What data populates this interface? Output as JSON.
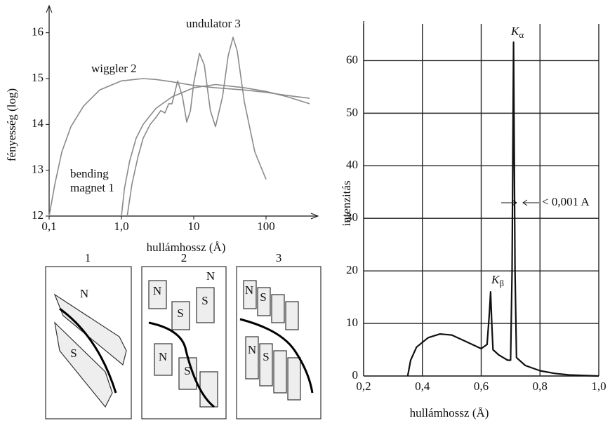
{
  "chart_data": [
    {
      "type": "line",
      "xscale": "log",
      "y_label": "fényesség (log)",
      "x_label": "hullámhossz (Å)",
      "xlim": [
        0.1,
        400
      ],
      "ylim": [
        12,
        16.5
      ],
      "xticks": [
        {
          "value": 0.1,
          "label": "0,1"
        },
        {
          "value": 1,
          "label": "1,0"
        },
        10,
        100
      ],
      "yticks": [
        12,
        13,
        14,
        15,
        16
      ],
      "grid": false,
      "series": [
        {
          "name": "wiggler 2",
          "color": "#8a8a8a",
          "x": [
            0.1,
            0.12,
            0.15,
            0.2,
            0.3,
            0.5,
            1,
            2,
            3,
            5,
            10,
            20,
            50,
            100,
            200,
            400
          ],
          "values": [
            12,
            12.7,
            13.4,
            13.95,
            14.4,
            14.75,
            14.95,
            15.0,
            14.98,
            14.93,
            14.85,
            14.8,
            14.75,
            14.7,
            14.63,
            14.57
          ]
        },
        {
          "name": "bending magnet 1",
          "color": "#8a8a8a",
          "x": [
            1.0,
            1.1,
            1.3,
            1.6,
            2,
            3,
            5,
            10,
            20,
            50,
            100,
            200,
            400
          ],
          "values": [
            12,
            12.6,
            13.2,
            13.7,
            14.0,
            14.35,
            14.6,
            14.8,
            14.87,
            14.8,
            14.72,
            14.6,
            14.45
          ]
        },
        {
          "name": "undulator 3",
          "color": "#8a8a8a",
          "x": [
            1.2,
            1.4,
            1.7,
            2,
            2.5,
            3,
            3.5,
            4,
            4.5,
            5,
            6,
            7,
            8,
            9,
            10,
            12,
            14,
            17,
            20,
            25,
            30,
            35,
            40,
            50,
            70,
            100
          ],
          "values": [
            12,
            12.7,
            13.3,
            13.7,
            14.0,
            14.15,
            14.3,
            14.25,
            14.45,
            14.45,
            14.95,
            14.6,
            14.05,
            14.3,
            14.9,
            15.55,
            15.3,
            14.3,
            13.95,
            14.6,
            15.5,
            15.9,
            15.6,
            14.5,
            13.4,
            12.8
          ]
        }
      ]
    },
    {
      "type": "line",
      "y_label": "intenzitás",
      "x_label": "hullámhossz (Å)",
      "xlim": [
        0.2,
        1.0
      ],
      "ylim": [
        0,
        67
      ],
      "xticks": [
        {
          "value": 0.2,
          "label": "0,2"
        },
        {
          "value": 0.4,
          "label": "0,4"
        },
        {
          "value": 0.6,
          "label": "0,6"
        },
        {
          "value": 0.8,
          "label": "0,8"
        },
        {
          "value": 1.0,
          "label": "1,0"
        }
      ],
      "yticks": [
        0,
        10,
        20,
        30,
        40,
        50,
        60
      ],
      "grid": true,
      "series": [
        {
          "color": "#111111",
          "x": [
            0.35,
            0.36,
            0.38,
            0.42,
            0.46,
            0.5,
            0.55,
            0.6,
            0.62,
            0.628,
            0.632,
            0.636,
            0.64,
            0.66,
            0.69,
            0.7,
            0.705,
            0.71,
            0.715,
            0.72,
            0.75,
            0.8,
            0.85,
            0.9,
            1.0
          ],
          "values": [
            0,
            3,
            5.5,
            7.3,
            8,
            7.8,
            6.5,
            5.2,
            6,
            12,
            16,
            10,
            5,
            4,
            3,
            3,
            20,
            63.5,
            20,
            3.5,
            2,
            1,
            0.5,
            0.2,
            0
          ]
        }
      ],
      "annotations": [
        {
          "text": "K",
          "sub": "α"
        },
        {
          "text": "K",
          "sub": "β"
        },
        {
          "text": "< 0,001 A"
        }
      ]
    }
  ],
  "diagrams": [
    {
      "label": "1",
      "poles": [
        "N",
        "S"
      ]
    },
    {
      "label": "2",
      "poles": [
        "N",
        "S",
        "S",
        "N",
        "N",
        "S"
      ]
    },
    {
      "label": "3",
      "poles": [
        "N",
        "S",
        "N",
        "S"
      ]
    }
  ]
}
